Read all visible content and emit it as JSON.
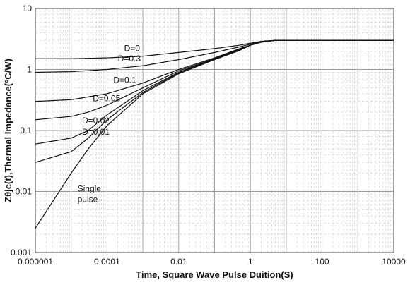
{
  "chart_data": {
    "type": "line",
    "title": "",
    "xlabel": "Time, Square Wave Pulse Duition(S)",
    "ylabel": "Zθjc(t),Thermal Impedance(°C/W)",
    "xscale": "log",
    "yscale": "log",
    "xlim": [
      1e-06,
      10000
    ],
    "ylim": [
      0.001,
      10
    ],
    "grid": true,
    "legend": "none",
    "x_ticks": [
      {
        "value": 1e-06,
        "label": "0.000001"
      },
      {
        "value": 0.0001,
        "label": "0.0001"
      },
      {
        "value": 0.01,
        "label": "0.01"
      },
      {
        "value": 1,
        "label": "1"
      },
      {
        "value": 100,
        "label": "100"
      },
      {
        "value": 10000,
        "label": "10000"
      }
    ],
    "y_ticks": [
      {
        "value": 0.001,
        "label": "0.001"
      },
      {
        "value": 0.01,
        "label": "0.01"
      },
      {
        "value": 0.1,
        "label": "0.1"
      },
      {
        "value": 1,
        "label": "1"
      },
      {
        "value": 10,
        "label": "10"
      }
    ],
    "line_color": "#111111",
    "series": [
      {
        "name": "D=0.",
        "label_at": [
          0.0003,
          2.0
        ],
        "x": [
          1e-06,
          1e-05,
          0.0001,
          0.001,
          0.01,
          0.1,
          0.5,
          1,
          2,
          5,
          10000
        ],
        "y": [
          1.5,
          1.5,
          1.55,
          1.65,
          1.9,
          2.2,
          2.5,
          2.7,
          2.9,
          3.0,
          3.0
        ]
      },
      {
        "name": "D=0.3",
        "label_at": [
          0.0002,
          1.35
        ],
        "x": [
          1e-06,
          1e-05,
          0.0001,
          0.001,
          0.01,
          0.1,
          0.5,
          1,
          2,
          5,
          10000
        ],
        "y": [
          0.9,
          0.92,
          1.0,
          1.15,
          1.45,
          1.9,
          2.35,
          2.6,
          2.85,
          3.0,
          3.0
        ]
      },
      {
        "name": "D=0.1",
        "label_at": [
          0.00015,
          0.6
        ],
        "x": [
          1e-06,
          1e-05,
          0.0001,
          0.001,
          0.01,
          0.1,
          0.5,
          1,
          2,
          5,
          10000
        ],
        "y": [
          0.3,
          0.32,
          0.4,
          0.6,
          1.0,
          1.55,
          2.2,
          2.5,
          2.8,
          3.0,
          3.0
        ]
      },
      {
        "name": "D=0.05",
        "label_at": [
          4e-05,
          0.3
        ],
        "x": [
          1e-06,
          1e-05,
          3e-05,
          0.0001,
          0.001,
          0.01,
          0.1,
          0.5,
          1,
          2,
          5,
          10000
        ],
        "y": [
          0.15,
          0.17,
          0.2,
          0.26,
          0.5,
          0.95,
          1.5,
          2.15,
          2.5,
          2.8,
          3.0,
          3.0
        ]
      },
      {
        "name": "D=0.02",
        "label_at": [
          2e-05,
          0.13
        ],
        "x": [
          1e-06,
          1e-05,
          3e-05,
          0.0001,
          0.001,
          0.01,
          0.1,
          0.5,
          1,
          2,
          5,
          10000
        ],
        "y": [
          0.06,
          0.075,
          0.1,
          0.18,
          0.45,
          0.9,
          1.5,
          2.1,
          2.5,
          2.8,
          3.0,
          3.0
        ]
      },
      {
        "name": "D=0.01",
        "label_at": [
          2e-05,
          0.085
        ],
        "x": [
          1e-06,
          1e-05,
          3e-05,
          0.0001,
          0.001,
          0.01,
          0.1,
          0.5,
          1,
          2,
          5,
          10000
        ],
        "y": [
          0.03,
          0.045,
          0.075,
          0.15,
          0.42,
          0.88,
          1.48,
          2.1,
          2.5,
          2.8,
          3.0,
          3.0
        ]
      },
      {
        "name": "Single pulse",
        "label_at": [
          1.5e-05,
          0.01
        ],
        "x": [
          1e-06,
          1e-05,
          3e-05,
          0.0001,
          0.001,
          0.01,
          0.1,
          0.5,
          1,
          2,
          5,
          10000
        ],
        "y": [
          0.0025,
          0.02,
          0.05,
          0.12,
          0.4,
          0.85,
          1.45,
          2.05,
          2.5,
          2.8,
          3.0,
          3.0
        ]
      }
    ]
  }
}
